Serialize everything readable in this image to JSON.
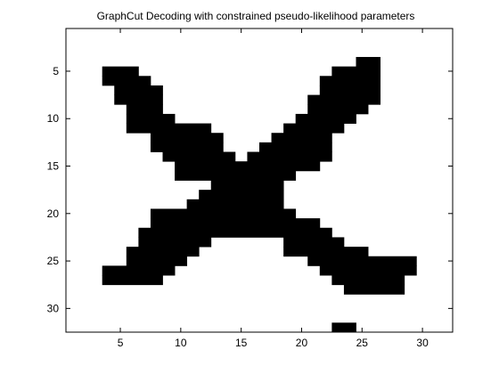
{
  "chart_data": {
    "type": "heatmap",
    "title": "GraphCut Decoding with constrained pseudo-likelihood parameters",
    "xlabel": "",
    "ylabel": "",
    "xlim": [
      0.5,
      32.5
    ],
    "ylim": [
      0.5,
      32.5
    ],
    "y_reversed": true,
    "x_ticks": [
      5,
      10,
      15,
      20,
      25,
      30
    ],
    "y_ticks": [
      5,
      10,
      15,
      20,
      25,
      30
    ],
    "grid": false,
    "colors": {
      "on": "#000000",
      "off": "#ffffff"
    },
    "cells_note_format": "each row: [row_index, [[col_start, col_end], ...]] black cells",
    "rows": [
      [
        4,
        [
          [
            25,
            26
          ]
        ]
      ],
      [
        5,
        [
          [
            4,
            6
          ],
          [
            23,
            26
          ]
        ]
      ],
      [
        6,
        [
          [
            4,
            7
          ],
          [
            22,
            26
          ]
        ]
      ],
      [
        7,
        [
          [
            5,
            8
          ],
          [
            22,
            26
          ]
        ]
      ],
      [
        8,
        [
          [
            5,
            8
          ],
          [
            21,
            26
          ]
        ]
      ],
      [
        9,
        [
          [
            6,
            8
          ],
          [
            21,
            25
          ]
        ]
      ],
      [
        10,
        [
          [
            6,
            9
          ],
          [
            20,
            24
          ]
        ]
      ],
      [
        11,
        [
          [
            6,
            12
          ],
          [
            19,
            23
          ]
        ]
      ],
      [
        12,
        [
          [
            8,
            13
          ],
          [
            18,
            22
          ]
        ]
      ],
      [
        13,
        [
          [
            8,
            13
          ],
          [
            17,
            22
          ]
        ]
      ],
      [
        14,
        [
          [
            9,
            14
          ],
          [
            16,
            22
          ]
        ]
      ],
      [
        15,
        [
          [
            10,
            21
          ]
        ]
      ],
      [
        16,
        [
          [
            10,
            19
          ]
        ]
      ],
      [
        17,
        [
          [
            13,
            18
          ]
        ]
      ],
      [
        18,
        [
          [
            12,
            18
          ]
        ]
      ],
      [
        19,
        [
          [
            11,
            18
          ]
        ]
      ],
      [
        20,
        [
          [
            8,
            19
          ]
        ]
      ],
      [
        21,
        [
          [
            8,
            21
          ]
        ]
      ],
      [
        22,
        [
          [
            7,
            22
          ]
        ]
      ],
      [
        23,
        [
          [
            7,
            12
          ],
          [
            19,
            23
          ]
        ]
      ],
      [
        24,
        [
          [
            6,
            11
          ],
          [
            19,
            25
          ]
        ]
      ],
      [
        25,
        [
          [
            6,
            10
          ],
          [
            21,
            29
          ]
        ]
      ],
      [
        26,
        [
          [
            4,
            9
          ],
          [
            22,
            29
          ]
        ]
      ],
      [
        27,
        [
          [
            4,
            8
          ],
          [
            23,
            28
          ]
        ]
      ],
      [
        28,
        [
          [
            24,
            28
          ]
        ]
      ],
      [
        32,
        [
          [
            23,
            24
          ]
        ]
      ]
    ]
  }
}
